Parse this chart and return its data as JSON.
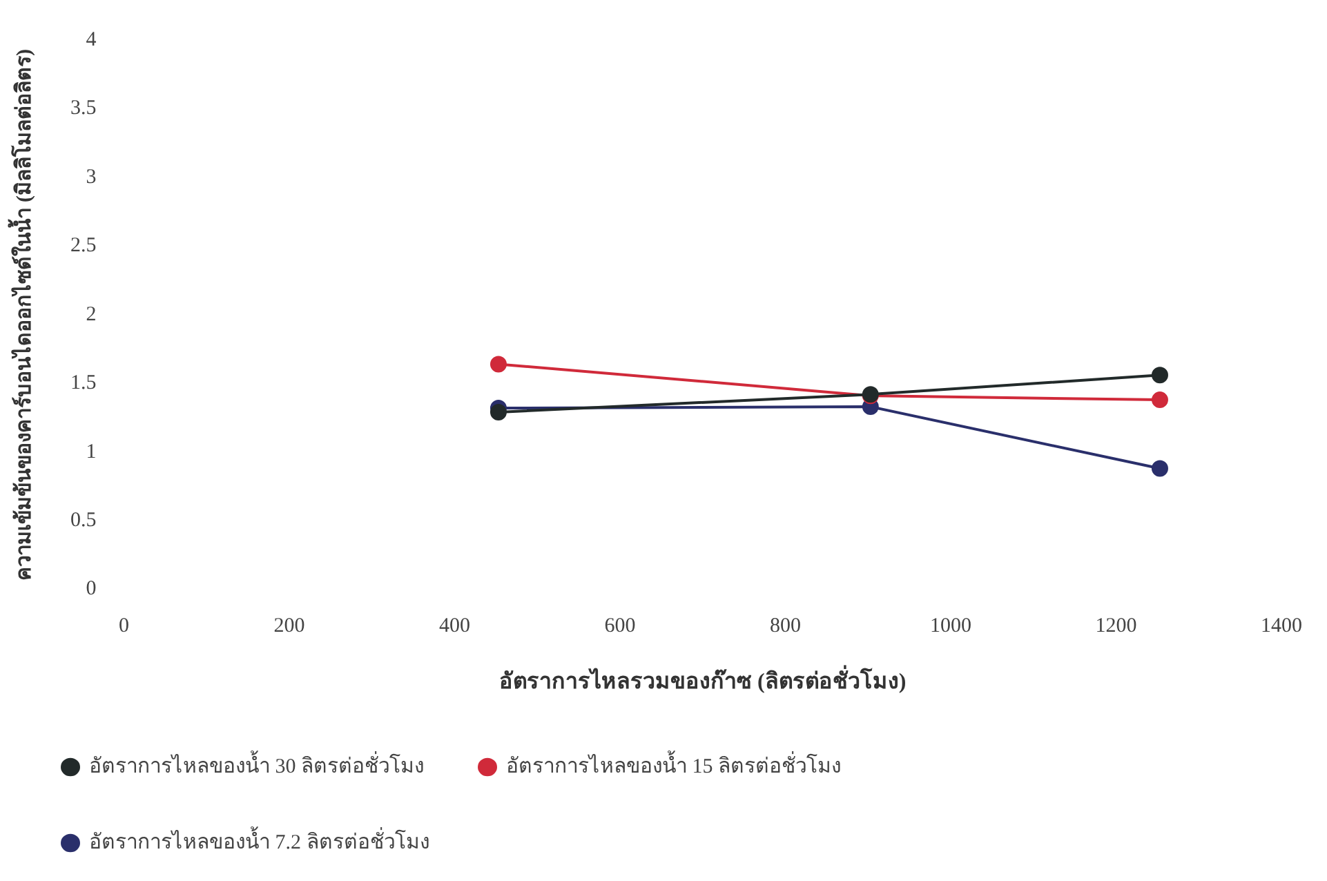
{
  "chart_data": {
    "type": "line",
    "xlabel": "อัตราการไหลรวมของก๊าซ (ลิตรต่อชั่วโมง)",
    "ylabel": "ความเข้มข้นของคาร์บอนไดออกไซด์ในน้ำ (มิลลิโมลต่อลิตร)",
    "x": [
      453,
      903,
      1253
    ],
    "series": [
      {
        "name": "อัตราการไหลของน้ำ 7.2 ลิตรต่อชั่วโมง",
        "color": "#2a2f6b",
        "values": [
          1.32,
          1.33,
          0.88
        ]
      },
      {
        "name": "อัตราการไหลของน้ำ 15 ลิตรต่อชั่วโมง",
        "color": "#d02a3a",
        "values": [
          1.64,
          1.41,
          1.38
        ]
      },
      {
        "name": "อัตราการไหลของน้ำ 30 ลิตรต่อชั่วโมง",
        "color": "#222a2a",
        "values": [
          1.29,
          1.42,
          1.56
        ]
      }
    ],
    "xlim": [
      0,
      1400
    ],
    "xticks": [
      0,
      200,
      400,
      600,
      800,
      1000,
      1200,
      1400
    ],
    "ylim": [
      0,
      4
    ],
    "yticks": [
      0,
      0.5,
      1,
      1.5,
      2,
      2.5,
      3,
      3.5,
      4
    ],
    "grid": false,
    "legend": "bottom",
    "marker": "circle",
    "line_style": "solid"
  }
}
